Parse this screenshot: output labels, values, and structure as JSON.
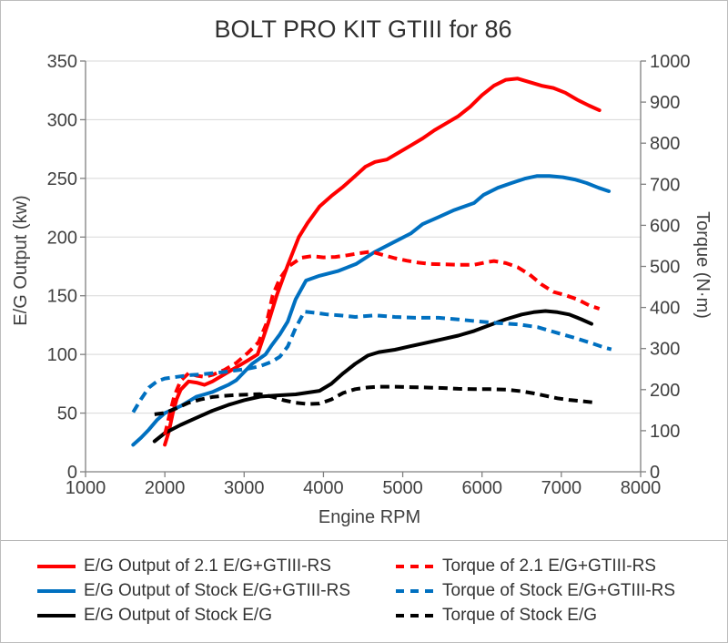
{
  "chart_data": {
    "type": "line",
    "title": "BOLT PRO KIT GTIII for 86",
    "xlabel": "Engine RPM",
    "ylabel_left": "E/G Output (kw)",
    "ylabel_right": "Torque (N·m)",
    "x_range": [
      1000,
      8000
    ],
    "y_left_range": [
      0,
      350
    ],
    "y_right_range": [
      0,
      1000
    ],
    "x_ticks": [
      1000,
      2000,
      3000,
      4000,
      5000,
      6000,
      7000,
      8000
    ],
    "y_left_ticks": [
      0,
      50,
      100,
      150,
      200,
      250,
      300,
      350
    ],
    "y_right_ticks": [
      0,
      100,
      200,
      300,
      400,
      500,
      600,
      700,
      800,
      900,
      1000
    ],
    "grid": "horizontal",
    "legend_position": "bottom",
    "colors": {
      "red": "#ff0000",
      "blue": "#0070c0",
      "black": "#000000",
      "grid": "#d8d8d8",
      "axis": "#808080",
      "text": "#404040"
    },
    "series": [
      {
        "id": "output-21-gtiii-rs",
        "name": "E/G Output of 2.1 E/G+GTIII-RS",
        "axis": "left",
        "color": "#ff0000",
        "style": "solid",
        "points": [
          [
            2000,
            23
          ],
          [
            2050,
            34
          ],
          [
            2100,
            50
          ],
          [
            2150,
            62
          ],
          [
            2200,
            70
          ],
          [
            2300,
            77
          ],
          [
            2400,
            76
          ],
          [
            2500,
            74
          ],
          [
            2600,
            77
          ],
          [
            2750,
            83
          ],
          [
            2900,
            89
          ],
          [
            3050,
            95
          ],
          [
            3170,
            100
          ],
          [
            3300,
            126
          ],
          [
            3410,
            150
          ],
          [
            3550,
            176
          ],
          [
            3690,
            200
          ],
          [
            3800,
            212
          ],
          [
            3950,
            226
          ],
          [
            4100,
            235
          ],
          [
            4250,
            243
          ],
          [
            4400,
            252
          ],
          [
            4530,
            260
          ],
          [
            4650,
            264
          ],
          [
            4800,
            266
          ],
          [
            4950,
            272
          ],
          [
            5100,
            278
          ],
          [
            5250,
            284
          ],
          [
            5400,
            291
          ],
          [
            5550,
            297
          ],
          [
            5700,
            303
          ],
          [
            5850,
            311
          ],
          [
            6000,
            321
          ],
          [
            6150,
            329
          ],
          [
            6300,
            334
          ],
          [
            6450,
            335
          ],
          [
            6600,
            332
          ],
          [
            6750,
            329
          ],
          [
            6900,
            327
          ],
          [
            7050,
            323
          ],
          [
            7200,
            317
          ],
          [
            7350,
            312
          ],
          [
            7480,
            308
          ]
        ]
      },
      {
        "id": "output-stock-gtiii-rs",
        "name": "E/G Output of Stock E/G+GTIII-RS",
        "axis": "left",
        "color": "#0070c0",
        "style": "solid",
        "points": [
          [
            1600,
            23
          ],
          [
            1700,
            29
          ],
          [
            1800,
            36
          ],
          [
            1900,
            44
          ],
          [
            2000,
            50
          ],
          [
            2100,
            53
          ],
          [
            2200,
            56
          ],
          [
            2300,
            60
          ],
          [
            2400,
            64
          ],
          [
            2500,
            66
          ],
          [
            2600,
            68
          ],
          [
            2700,
            71
          ],
          [
            2800,
            74
          ],
          [
            2900,
            78
          ],
          [
            3000,
            85
          ],
          [
            3100,
            92
          ],
          [
            3270,
            100
          ],
          [
            3350,
            108
          ],
          [
            3450,
            117
          ],
          [
            3550,
            128
          ],
          [
            3650,
            147
          ],
          [
            3780,
            163
          ],
          [
            3950,
            167
          ],
          [
            4180,
            171
          ],
          [
            4410,
            177
          ],
          [
            4640,
            187
          ],
          [
            4870,
            195
          ],
          [
            5100,
            203
          ],
          [
            5250,
            211
          ],
          [
            5450,
            217
          ],
          [
            5650,
            223
          ],
          [
            5900,
            229
          ],
          [
            6020,
            236
          ],
          [
            6200,
            242
          ],
          [
            6370,
            246
          ],
          [
            6550,
            250
          ],
          [
            6690,
            252
          ],
          [
            6850,
            252
          ],
          [
            7020,
            251
          ],
          [
            7170,
            249
          ],
          [
            7320,
            246
          ],
          [
            7470,
            242
          ],
          [
            7600,
            239
          ]
        ]
      },
      {
        "id": "output-stock",
        "name": "E/G Output of Stock E/G",
        "axis": "left",
        "color": "#000000",
        "style": "solid",
        "points": [
          [
            1870,
            26
          ],
          [
            2000,
            33
          ],
          [
            2200,
            40
          ],
          [
            2400,
            46
          ],
          [
            2600,
            52
          ],
          [
            2800,
            57
          ],
          [
            3000,
            61
          ],
          [
            3200,
            64
          ],
          [
            3400,
            65
          ],
          [
            3650,
            66
          ],
          [
            3950,
            69
          ],
          [
            4100,
            75
          ],
          [
            4250,
            84
          ],
          [
            4400,
            92
          ],
          [
            4560,
            99
          ],
          [
            4700,
            102
          ],
          [
            4900,
            104
          ],
          [
            5100,
            107
          ],
          [
            5300,
            110
          ],
          [
            5500,
            113
          ],
          [
            5700,
            116
          ],
          [
            5900,
            120
          ],
          [
            6100,
            125
          ],
          [
            6300,
            130
          ],
          [
            6500,
            134
          ],
          [
            6650,
            136
          ],
          [
            6800,
            137
          ],
          [
            6950,
            136
          ],
          [
            7100,
            134
          ],
          [
            7250,
            130
          ],
          [
            7380,
            126
          ]
        ]
      },
      {
        "id": "torque-21-gtiii-rs",
        "name": "Torque of 2.1 E/G+GTIII-RS",
        "axis": "right",
        "color": "#ff0000",
        "style": "dashed",
        "points": [
          [
            2000,
            90
          ],
          [
            2060,
            140
          ],
          [
            2120,
            185
          ],
          [
            2200,
            222
          ],
          [
            2300,
            240
          ],
          [
            2400,
            234
          ],
          [
            2500,
            231
          ],
          [
            2600,
            236
          ],
          [
            2750,
            248
          ],
          [
            2900,
            265
          ],
          [
            3050,
            290
          ],
          [
            3180,
            315
          ],
          [
            3280,
            360
          ],
          [
            3360,
            430
          ],
          [
            3450,
            470
          ],
          [
            3560,
            500
          ],
          [
            3720,
            521
          ],
          [
            3850,
            525
          ],
          [
            4000,
            522
          ],
          [
            4150,
            523
          ],
          [
            4300,
            527
          ],
          [
            4450,
            532
          ],
          [
            4600,
            536
          ],
          [
            4750,
            528
          ],
          [
            4900,
            520
          ],
          [
            5050,
            514
          ],
          [
            5200,
            509
          ],
          [
            5350,
            506
          ],
          [
            5500,
            505
          ],
          [
            5700,
            504
          ],
          [
            5900,
            504
          ],
          [
            6050,
            510
          ],
          [
            6150,
            513
          ],
          [
            6300,
            508
          ],
          [
            6450,
            498
          ],
          [
            6600,
            480
          ],
          [
            6750,
            456
          ],
          [
            6900,
            438
          ],
          [
            7050,
            430
          ],
          [
            7200,
            420
          ],
          [
            7350,
            405
          ],
          [
            7480,
            397
          ]
        ]
      },
      {
        "id": "torque-stock-gtiii-rs",
        "name": "Torque of Stock E/G+GTIII-RS",
        "axis": "right",
        "color": "#0070c0",
        "style": "dashed",
        "points": [
          [
            1600,
            145
          ],
          [
            1700,
            177
          ],
          [
            1800,
            205
          ],
          [
            1900,
            220
          ],
          [
            2000,
            227
          ],
          [
            2150,
            231
          ],
          [
            2300,
            235
          ],
          [
            2450,
            237
          ],
          [
            2600,
            240
          ],
          [
            2750,
            243
          ],
          [
            2900,
            247
          ],
          [
            3050,
            251
          ],
          [
            3200,
            257
          ],
          [
            3350,
            268
          ],
          [
            3450,
            280
          ],
          [
            3550,
            305
          ],
          [
            3650,
            350
          ],
          [
            3760,
            390
          ],
          [
            3900,
            387
          ],
          [
            4050,
            383
          ],
          [
            4200,
            381
          ],
          [
            4400,
            377
          ],
          [
            4650,
            381
          ],
          [
            4900,
            377
          ],
          [
            5150,
            375
          ],
          [
            5450,
            375
          ],
          [
            5700,
            371
          ],
          [
            5950,
            366
          ],
          [
            6200,
            362
          ],
          [
            6450,
            359
          ],
          [
            6700,
            352
          ],
          [
            6950,
            338
          ],
          [
            7170,
            326
          ],
          [
            7400,
            312
          ],
          [
            7550,
            302
          ],
          [
            7630,
            298
          ]
        ]
      },
      {
        "id": "torque-stock",
        "name": "Torque of Stock E/G",
        "axis": "right",
        "color": "#000000",
        "style": "dashed",
        "points": [
          [
            1870,
            140
          ],
          [
            2000,
            143
          ],
          [
            2150,
            155
          ],
          [
            2300,
            168
          ],
          [
            2450,
            176
          ],
          [
            2600,
            182
          ],
          [
            2750,
            185
          ],
          [
            2900,
            187
          ],
          [
            3050,
            188
          ],
          [
            3200,
            189
          ],
          [
            3350,
            183
          ],
          [
            3500,
            174
          ],
          [
            3650,
            168
          ],
          [
            3800,
            165
          ],
          [
            3950,
            166
          ],
          [
            4100,
            176
          ],
          [
            4250,
            192
          ],
          [
            4400,
            201
          ],
          [
            4550,
            205
          ],
          [
            4700,
            207
          ],
          [
            4900,
            207
          ],
          [
            5100,
            206
          ],
          [
            5300,
            205
          ],
          [
            5500,
            204
          ],
          [
            5700,
            202
          ],
          [
            5900,
            201
          ],
          [
            6100,
            201
          ],
          [
            6300,
            200
          ],
          [
            6500,
            196
          ],
          [
            6650,
            191
          ],
          [
            6800,
            185
          ],
          [
            6950,
            179
          ],
          [
            7100,
            175
          ],
          [
            7250,
            172
          ],
          [
            7400,
            169
          ]
        ]
      }
    ],
    "legend": {
      "columns": [
        [
          0,
          1,
          2
        ],
        [
          3,
          4,
          5
        ]
      ]
    }
  }
}
